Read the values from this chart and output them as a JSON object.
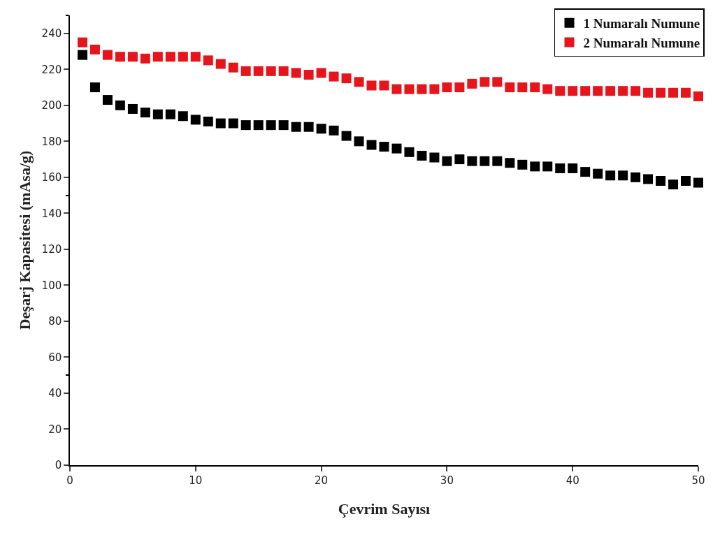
{
  "chart_data": {
    "type": "scatter",
    "xlabel": "Çevrim Sayısı",
    "ylabel": "Deşarj Kapasitesi (mAsa/g)",
    "x": [
      1,
      2,
      3,
      4,
      5,
      6,
      7,
      8,
      9,
      10,
      11,
      12,
      13,
      14,
      15,
      16,
      17,
      18,
      19,
      20,
      21,
      22,
      23,
      24,
      25,
      26,
      27,
      28,
      29,
      30,
      31,
      32,
      33,
      34,
      35,
      36,
      37,
      38,
      39,
      40,
      41,
      42,
      43,
      44,
      45,
      46,
      47,
      48,
      49,
      50
    ],
    "series": [
      {
        "name": "1 Numaralı Numune",
        "color": "#000000",
        "values": [
          228,
          210,
          203,
          200,
          198,
          196,
          195,
          195,
          194,
          192,
          191,
          190,
          190,
          189,
          189,
          189,
          189,
          188,
          188,
          187,
          186,
          183,
          180,
          178,
          177,
          176,
          174,
          172,
          171,
          169,
          170,
          169,
          169,
          169,
          168,
          167,
          166,
          166,
          165,
          165,
          163,
          162,
          161,
          161,
          160,
          159,
          158,
          156,
          158,
          157
        ]
      },
      {
        "name": "2 Numaralı Numune",
        "color": "#e8141c",
        "values": [
          235,
          231,
          228,
          227,
          227,
          226,
          227,
          227,
          227,
          227,
          225,
          223,
          221,
          219,
          219,
          219,
          219,
          218,
          217,
          218,
          216,
          215,
          213,
          211,
          211,
          209,
          209,
          209,
          209,
          210,
          210,
          212,
          213,
          213,
          210,
          210,
          210,
          209,
          208,
          208,
          208,
          208,
          208,
          208,
          208,
          207,
          207,
          207,
          207,
          205
        ]
      }
    ],
    "xlim": [
      0,
      50
    ],
    "xticks": [
      0,
      10,
      20,
      30,
      40,
      50
    ],
    "ylim": [
      0,
      250
    ],
    "yticks": [
      0,
      20,
      40,
      60,
      80,
      100,
      120,
      140,
      160,
      180,
      200,
      220,
      240
    ],
    "legend": "top right",
    "marker": "square"
  }
}
